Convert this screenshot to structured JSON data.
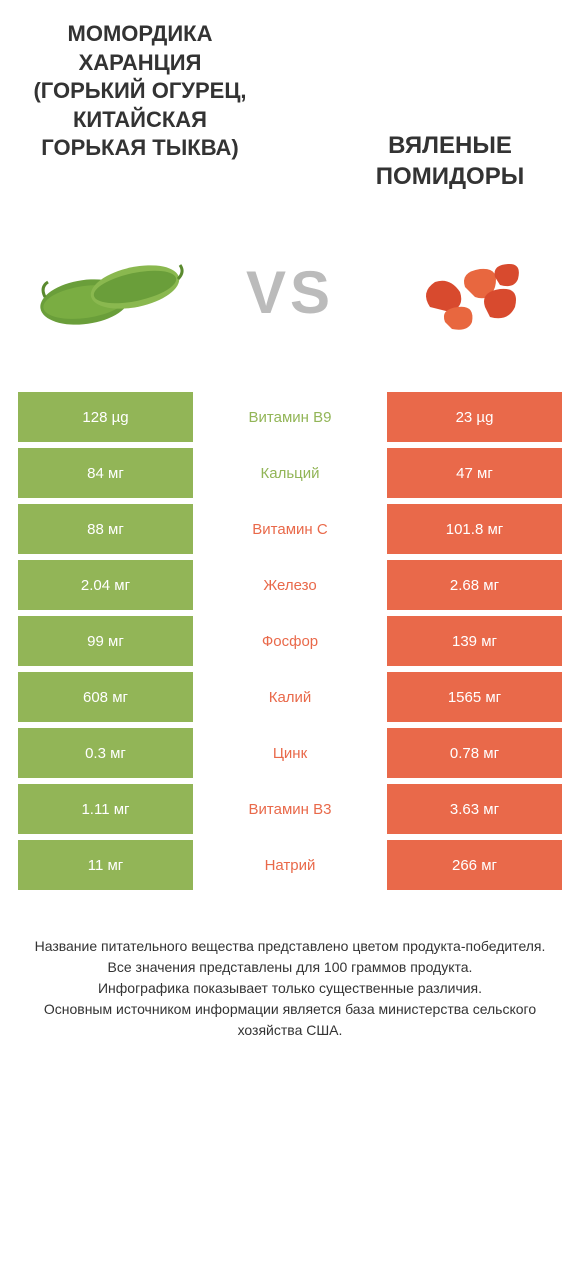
{
  "colors": {
    "green": "#92b557",
    "orange": "#e9694a",
    "text": "#333333",
    "vs": "#bbbbbb",
    "white": "#ffffff"
  },
  "titles": {
    "left": "МОМОРДИКА ХАРАНЦИЯ (ГОРЬКИЙ ОГУРЕЦ, КИТАЙСКАЯ ГОРЬКАЯ ТЫКВА)",
    "right": "ВЯЛЕНЫЕ ПОМИДОРЫ",
    "vs": "VS"
  },
  "table": {
    "left_color": "#92b557",
    "right_color": "#e9694a",
    "rows": [
      {
        "left": "128 µg",
        "label": "Витамин B9",
        "right": "23 µg",
        "winner": "left"
      },
      {
        "left": "84 мг",
        "label": "Кальций",
        "right": "47 мг",
        "winner": "left"
      },
      {
        "left": "88 мг",
        "label": "Витамин C",
        "right": "101.8 мг",
        "winner": "right"
      },
      {
        "left": "2.04 мг",
        "label": "Железо",
        "right": "2.68 мг",
        "winner": "right"
      },
      {
        "left": "99 мг",
        "label": "Фосфор",
        "right": "139 мг",
        "winner": "right"
      },
      {
        "left": "608 мг",
        "label": "Калий",
        "right": "1565 мг",
        "winner": "right"
      },
      {
        "left": "0.3 мг",
        "label": "Цинк",
        "right": "0.78 мг",
        "winner": "right"
      },
      {
        "left": "1.11 мг",
        "label": "Витамин B3",
        "right": "3.63 мг",
        "winner": "right"
      },
      {
        "left": "11 мг",
        "label": "Натрий",
        "right": "266 мг",
        "winner": "right"
      }
    ]
  },
  "footer": {
    "line1": "Название питательного вещества представлено цветом продукта-победителя.",
    "line2": "Все значения представлены для 100 граммов продукта.",
    "line3": "Инфографика показывает только существенные различия.",
    "line4": "Основным источником информации является база министерства сельского хозяйства США."
  }
}
